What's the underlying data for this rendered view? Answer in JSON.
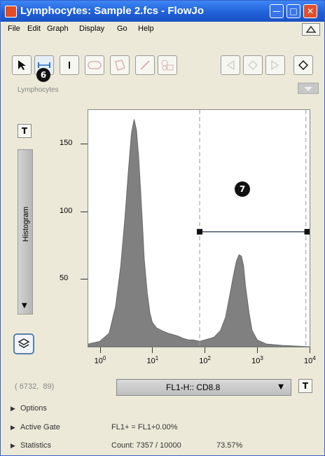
{
  "window": {
    "title": "Lymphocytes: Sample 2.fcs - FlowJo",
    "controls": [
      "minimize",
      "maximize",
      "close"
    ]
  },
  "menu": [
    "File",
    "Edit",
    "Graph",
    "Display",
    "Go",
    "Help"
  ],
  "toolbar": {
    "tools": [
      {
        "icon": "pointer-icon"
      },
      {
        "icon": "range-gate-icon"
      },
      {
        "icon": "bisector-icon"
      },
      {
        "icon": "oval-gate-icon"
      },
      {
        "icon": "polygon-gate-icon"
      },
      {
        "icon": "freehand-gate-icon"
      },
      {
        "icon": "quadrant-gate-icon"
      }
    ],
    "nav": [
      {
        "icon": "prev-arrow-icon"
      },
      {
        "icon": "diamond-icon"
      },
      {
        "icon": "next-arrow-icon"
      },
      {
        "icon": "diamond-active-icon"
      }
    ]
  },
  "callouts": {
    "tool": "6",
    "gate": "7"
  },
  "gate_label": "Lymphocytes",
  "plot_type": "Histogram",
  "chart_data": {
    "type": "area",
    "x_scale": "log",
    "xlim": [
      0.6,
      10000
    ],
    "ylim": [
      0,
      175
    ],
    "xtick_exponents": [
      "0",
      "1",
      "2",
      "3",
      "4"
    ],
    "yticks": [
      "50",
      "100",
      "150"
    ],
    "color": "#808080",
    "x": [
      0.6,
      1,
      1.5,
      2,
      2.5,
      3,
      3.5,
      4,
      4.5,
      5,
      5.5,
      6,
      6.5,
      7,
      8,
      9,
      10,
      12,
      15,
      20,
      30,
      40,
      50,
      60,
      80,
      100,
      150,
      200,
      250,
      300,
      350,
      400,
      450,
      500,
      550,
      600,
      700,
      800,
      1000,
      1500,
      3000,
      10000
    ],
    "y": [
      2,
      4,
      10,
      30,
      60,
      95,
      130,
      158,
      168,
      160,
      140,
      115,
      90,
      65,
      40,
      25,
      18,
      14,
      12,
      10,
      8,
      6,
      5,
      5,
      4,
      5,
      7,
      12,
      22,
      38,
      52,
      63,
      68,
      67,
      60,
      45,
      25,
      12,
      5,
      2,
      1,
      0
    ],
    "range_gate": {
      "name": "FL1+",
      "x_range": [
        80,
        9000
      ],
      "y": 85
    },
    "dashed_lines": [
      80,
      8500
    ]
  },
  "coord_readout": "( 6732,  89)",
  "x_param": "FL1-H:: CD8.8",
  "rows": [
    {
      "label": "Options",
      "value": "",
      "value2": ""
    },
    {
      "label": "Active Gate",
      "value": "FL1+ = FL1+0.00%",
      "value2": ""
    },
    {
      "label": "Statistics",
      "value": "Count: 7357 / 10000",
      "value2": "73.57%"
    }
  ]
}
